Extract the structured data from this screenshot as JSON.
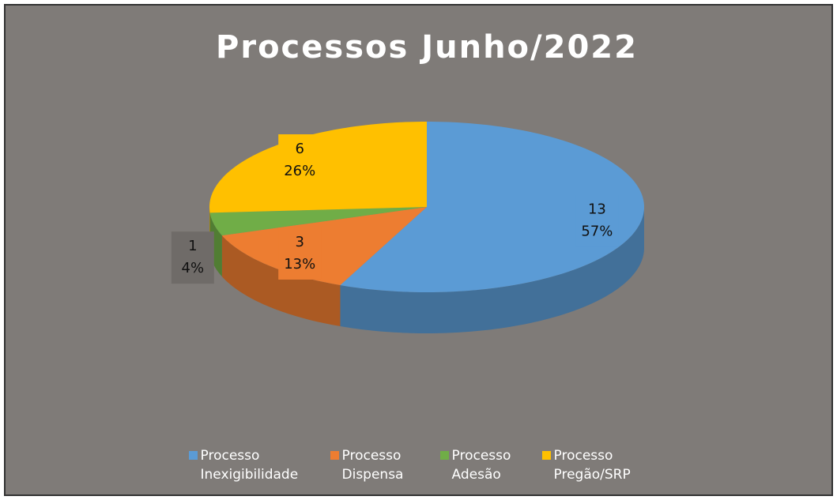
{
  "chart_data": {
    "type": "pie",
    "title": "Processos Junho/2022",
    "categories": [
      "Processo Inexigibilidade",
      "Processo Dispensa",
      "Processo Adesão",
      "Processo Pregão/SRP"
    ],
    "values": [
      13,
      3,
      1,
      6
    ],
    "percent_labels": [
      "57%",
      "13%",
      "4%",
      "26%"
    ],
    "colors": [
      "#5b9bd5",
      "#ed7d31",
      "#70ad47",
      "#ffc000"
    ],
    "legend": "bottom"
  }
}
